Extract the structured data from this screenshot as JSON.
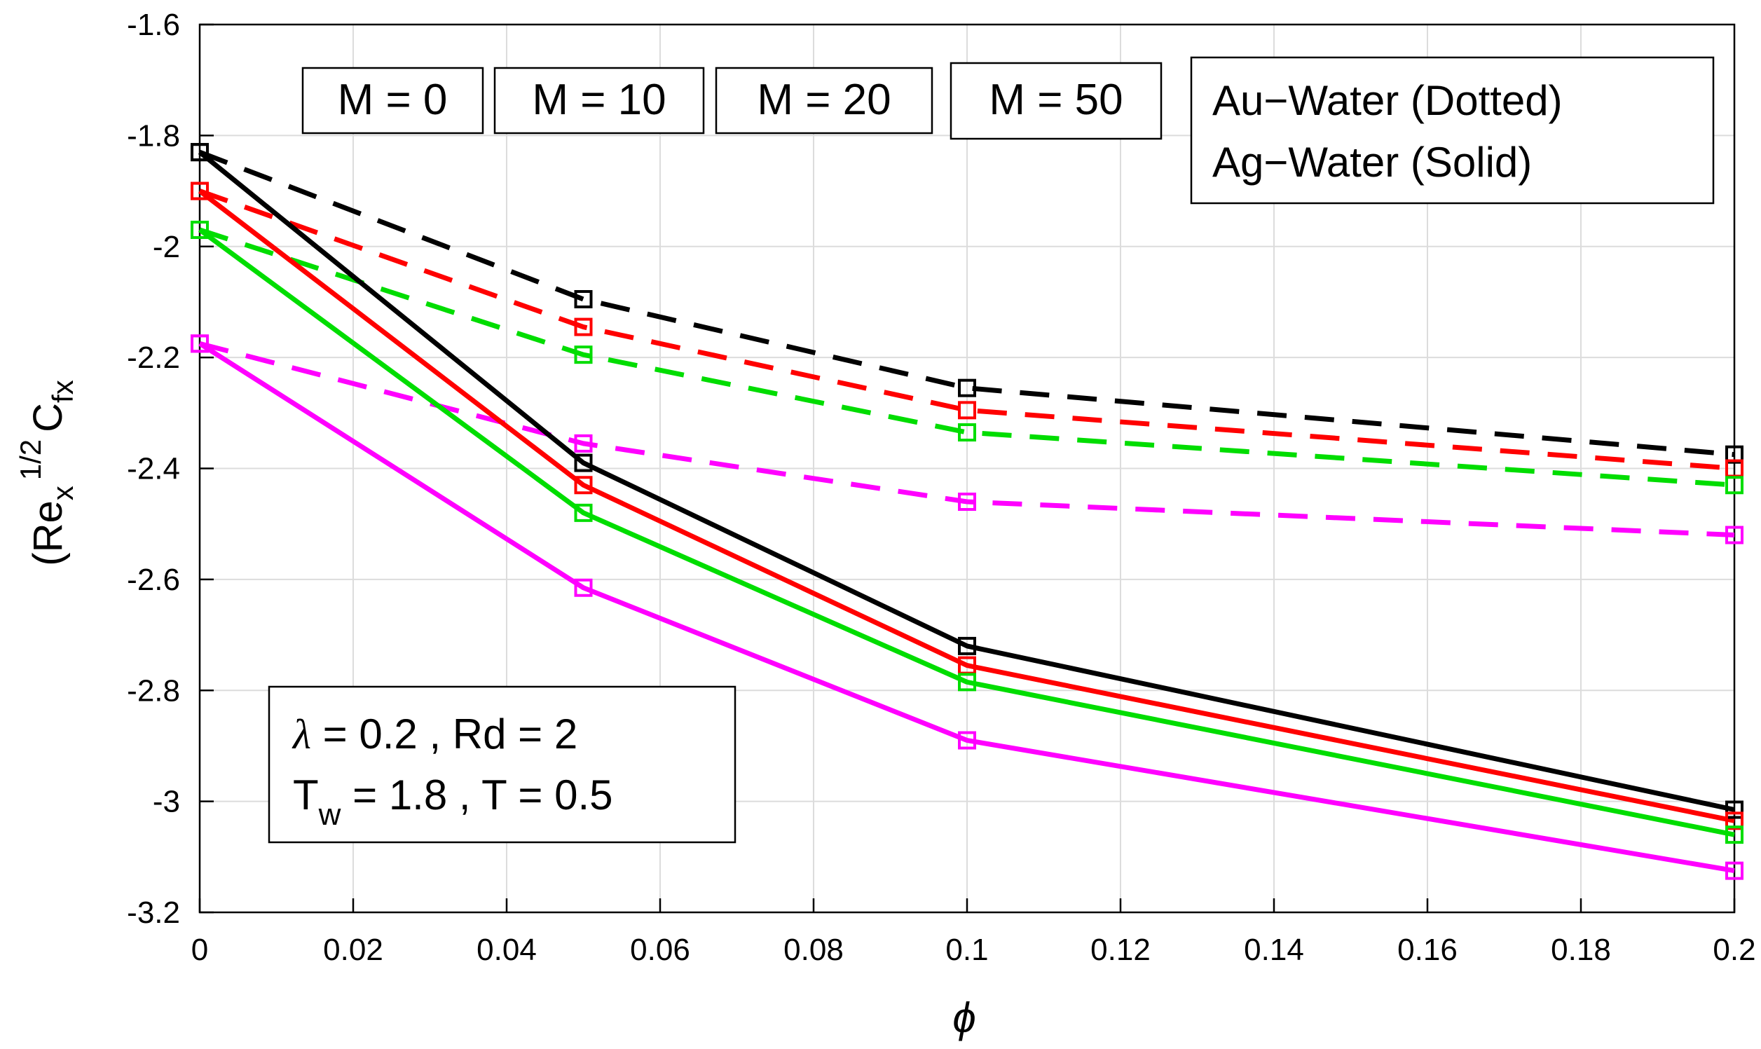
{
  "chart_data": {
    "type": "line",
    "title": "",
    "xlabel": "ϕ",
    "ylabel": "(Re",
    "ylabel_sub1": "x",
    "ylabel_sup": "1/2",
    "ylabel_rest": "C",
    "ylabel_sub2": "fx",
    "xlim": [
      0,
      0.2
    ],
    "ylim": [
      -3.2,
      -1.6
    ],
    "x": [
      0,
      0.05,
      0.1,
      0.2
    ],
    "xticks": [
      0,
      0.02,
      0.04,
      0.06,
      0.08,
      0.1,
      0.12,
      0.14,
      0.16,
      0.18,
      0.2
    ],
    "xtick_labels": [
      "0",
      "0.02",
      "0.04",
      "0.06",
      "0.08",
      "0.1",
      "0.12",
      "0.14",
      "0.16",
      "0.18",
      "0.2"
    ],
    "yticks": [
      -1.6,
      -1.8,
      -2,
      -2.2,
      -2.4,
      -2.6,
      -2.8,
      -3,
      -3.2
    ],
    "ytick_labels": [
      "-1.6",
      "-1.8",
      "-2",
      "-2.2",
      "-2.4",
      "-2.6",
      "-2.8",
      "-3",
      "-3.2"
    ],
    "grid": true,
    "series": [
      {
        "name": "M = 0 (Ag-Water)",
        "color": "#000000",
        "style": "solid",
        "values": [
          -1.83,
          -2.39,
          -2.72,
          -3.015
        ]
      },
      {
        "name": "M = 10 (Ag-Water)",
        "color": "#ff0000",
        "style": "solid",
        "values": [
          -1.9,
          -2.43,
          -2.755,
          -3.035
        ]
      },
      {
        "name": "M = 20 (Ag-Water)",
        "color": "#00dd00",
        "style": "solid",
        "values": [
          -1.97,
          -2.48,
          -2.785,
          -3.06
        ]
      },
      {
        "name": "M = 50 (Ag-Water)",
        "color": "#ff00ff",
        "style": "solid",
        "values": [
          -2.175,
          -2.615,
          -2.89,
          -3.125
        ]
      },
      {
        "name": "M = 0 (Au-Water)",
        "color": "#000000",
        "style": "dashed",
        "values": [
          -1.83,
          -2.095,
          -2.255,
          -2.375
        ]
      },
      {
        "name": "M = 10 (Au-Water)",
        "color": "#ff0000",
        "style": "dashed",
        "values": [
          -1.9,
          -2.145,
          -2.295,
          -2.4
        ]
      },
      {
        "name": "M = 20 (Au-Water)",
        "color": "#00dd00",
        "style": "dashed",
        "values": [
          -1.97,
          -2.195,
          -2.335,
          -2.43
        ]
      },
      {
        "name": "M = 50 (Au-Water)",
        "color": "#ff00ff",
        "style": "dashed",
        "values": [
          -2.175,
          -2.355,
          -2.46,
          -2.52
        ]
      }
    ],
    "legend_labels": [
      {
        "text": "M = 0",
        "color": "#000000"
      },
      {
        "text": "M = 10",
        "color": "#ff0000"
      },
      {
        "text": "M = 20",
        "color": "#00dd00"
      },
      {
        "text": "M = 50",
        "color": "#ff00ff"
      }
    ],
    "legend_fluids": [
      "Au−Water (Dotted)",
      "Ag−Water (Solid)"
    ],
    "annotation": {
      "lambda_sym": "λ",
      "line1_rest": " = 0.2 , Rd = 2",
      "line2_T": "T",
      "line2_sub": "w",
      "line2_rest": " = 1.8 , T = 0.5"
    }
  }
}
